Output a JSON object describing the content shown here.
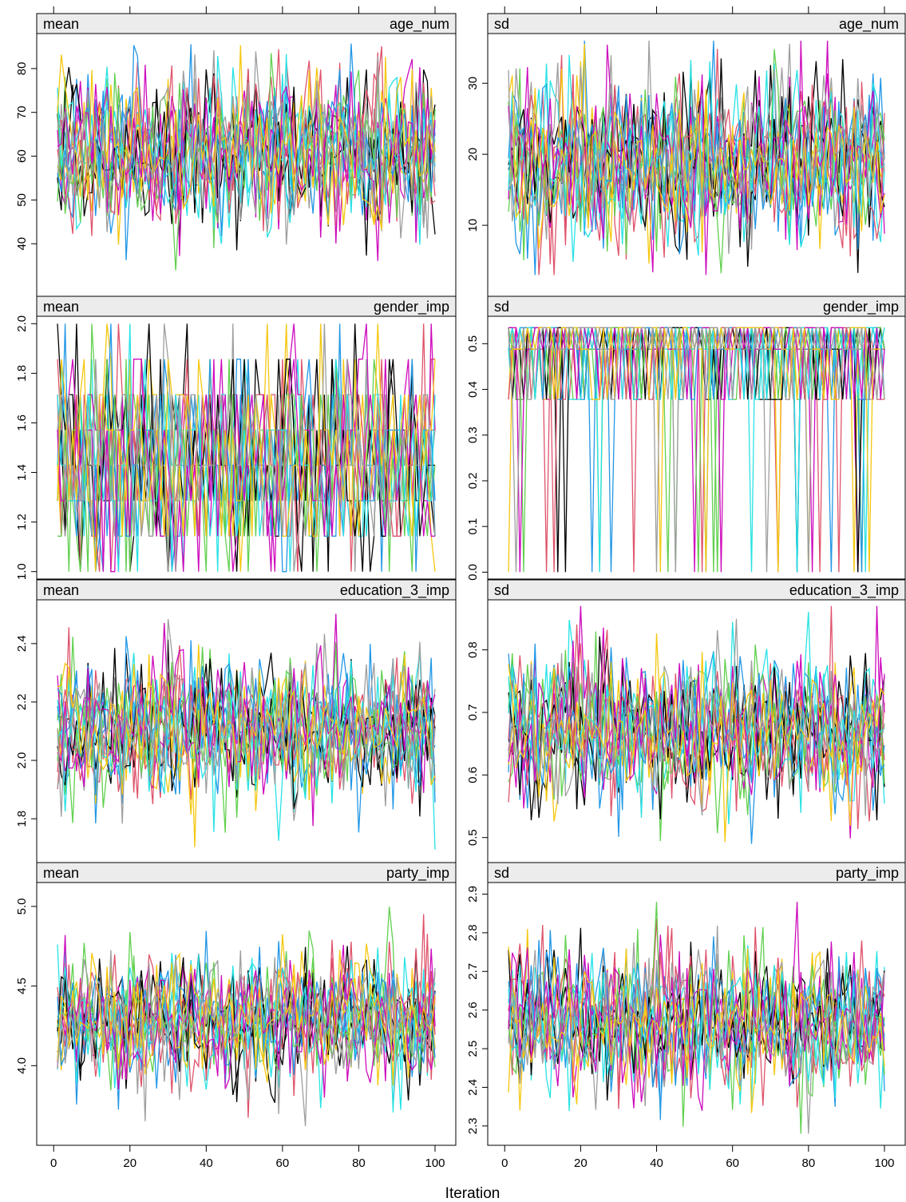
{
  "chart_data": {
    "type": "line",
    "xlabel": "Iteration",
    "x_ticks": [
      0,
      20,
      40,
      60,
      80,
      100
    ],
    "x_range": [
      1,
      100
    ],
    "series_palette": [
      "#000000",
      "#DF536B",
      "#61D04F",
      "#2297E6",
      "#28E2E5",
      "#CD0BBC",
      "#F5C710",
      "#9E9E9E"
    ],
    "panels": [
      {
        "statistic": "mean",
        "variable": "age_num",
        "ylim": [
          28,
          88
        ],
        "y_ticks": [
          "40",
          "50",
          "60",
          "70",
          "80"
        ],
        "value_range": [
          33,
          86
        ],
        "center": 61,
        "spread": 9,
        "discrete_levels": null
      },
      {
        "statistic": "sd",
        "variable": "age_num",
        "ylim": [
          0,
          37
        ],
        "y_ticks": [
          "10",
          "20",
          "30"
        ],
        "value_range": [
          3,
          36
        ],
        "center": 19,
        "spread": 6,
        "discrete_levels": null
      },
      {
        "statistic": "mean",
        "variable": "gender_imp",
        "ylim": [
          0.97,
          2.03
        ],
        "y_ticks": [
          "1.0",
          "1.2",
          "1.4",
          "1.6",
          "1.8",
          "2.0"
        ],
        "value_range": [
          1.0,
          2.0
        ],
        "center": 1.46,
        "spread": 0.22,
        "discrete_levels": [
          1.0,
          1.143,
          1.286,
          1.429,
          1.571,
          1.714,
          1.857,
          2.0
        ]
      },
      {
        "statistic": "sd",
        "variable": "gender_imp",
        "ylim": [
          -0.015,
          0.56
        ],
        "y_ticks": [
          "0.0",
          "0.1",
          "0.2",
          "0.3",
          "0.4",
          "0.5"
        ],
        "value_range": [
          0.0,
          0.535
        ],
        "center": 0.47,
        "spread": 0.08,
        "discrete_levels": [
          0.0,
          0.378,
          0.488,
          0.535
        ]
      },
      {
        "statistic": "mean",
        "variable": "education_3_imp",
        "ylim": [
          1.65,
          2.55
        ],
        "y_ticks": [
          "1.8",
          "2.0",
          "2.2",
          "2.4"
        ],
        "value_range": [
          1.68,
          2.51
        ],
        "center": 2.11,
        "spread": 0.12,
        "discrete_levels": null
      },
      {
        "statistic": "sd",
        "variable": "education_3_imp",
        "ylim": [
          0.46,
          0.88
        ],
        "y_ticks": [
          "0.5",
          "0.6",
          "0.7",
          "0.8"
        ],
        "value_range": [
          0.49,
          0.87
        ],
        "center": 0.67,
        "spread": 0.06,
        "discrete_levels": null
      },
      {
        "statistic": "mean",
        "variable": "party_imp",
        "ylim": [
          3.5,
          5.15
        ],
        "y_ticks": [
          "4.0",
          "4.5",
          "5.0"
        ],
        "value_range": [
          3.62,
          5.05
        ],
        "center": 4.3,
        "spread": 0.2,
        "discrete_levels": null
      },
      {
        "statistic": "sd",
        "variable": "party_imp",
        "ylim": [
          2.25,
          2.93
        ],
        "y_ticks": [
          "2.3",
          "2.4",
          "2.5",
          "2.6",
          "2.7",
          "2.8",
          "2.9"
        ],
        "value_range": [
          2.28,
          2.88
        ],
        "center": 2.57,
        "spread": 0.09,
        "discrete_levels": null
      }
    ]
  }
}
